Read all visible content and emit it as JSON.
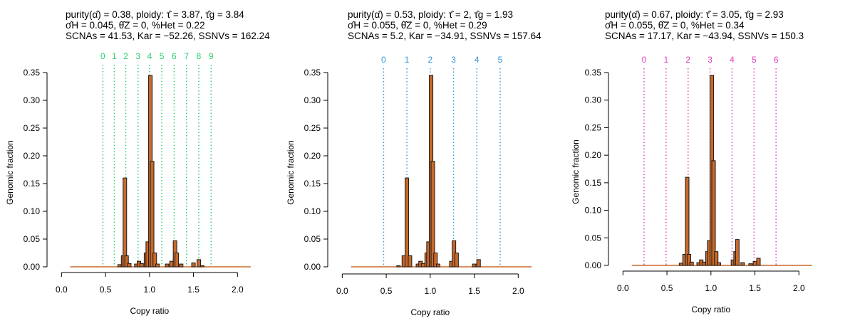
{
  "chart_data": [
    {
      "type": "bar",
      "header": {
        "line1": "purity(α̂) = 0.38, ploidy: τ̂ = 3.87, τ̂g = 3.84",
        "line2": "σ̂H = 0.045, θ̂Z = 0, %Het = 0.22",
        "line3": "SCNAs = 41.53, Kar = −52.26, SSNVs = 162.24"
      },
      "xlabel": "Copy ratio",
      "ylabel": "Genomic fraction",
      "xlim": [
        -0.1,
        2.2
      ],
      "ylim": [
        0,
        0.35
      ],
      "xticks": [
        "0.0",
        "0.5",
        "1.0",
        "1.5",
        "2.0"
      ],
      "yticks": [
        "0.00",
        "0.05",
        "0.10",
        "0.15",
        "0.20",
        "0.25",
        "0.30",
        "0.35"
      ],
      "copy_state_color": "#2ecc71",
      "copy_states": [
        {
          "label": "0",
          "x": 0.47
        },
        {
          "label": "1",
          "x": 0.6
        },
        {
          "label": "2",
          "x": 0.73
        },
        {
          "label": "3",
          "x": 0.87
        },
        {
          "label": "4",
          "x": 1.0
        },
        {
          "label": "5",
          "x": 1.14
        },
        {
          "label": "6",
          "x": 1.28
        },
        {
          "label": "7",
          "x": 1.42
        },
        {
          "label": "8",
          "x": 1.56
        },
        {
          "label": "9",
          "x": 1.7
        }
      ],
      "bars": [
        {
          "x": 0.66,
          "y": 0.004
        },
        {
          "x": 0.7,
          "y": 0.02
        },
        {
          "x": 0.72,
          "y": 0.16
        },
        {
          "x": 0.74,
          "y": 0.02
        },
        {
          "x": 0.77,
          "y": 0.006
        },
        {
          "x": 0.85,
          "y": 0.005
        },
        {
          "x": 0.88,
          "y": 0.01
        },
        {
          "x": 0.91,
          "y": 0.006
        },
        {
          "x": 0.96,
          "y": 0.025
        },
        {
          "x": 0.98,
          "y": 0.045
        },
        {
          "x": 1.01,
          "y": 0.345
        },
        {
          "x": 1.03,
          "y": 0.19
        },
        {
          "x": 1.06,
          "y": 0.025
        },
        {
          "x": 1.09,
          "y": 0.005
        },
        {
          "x": 1.2,
          "y": 0.005
        },
        {
          "x": 1.25,
          "y": 0.01
        },
        {
          "x": 1.29,
          "y": 0.047
        },
        {
          "x": 1.31,
          "y": 0.025
        },
        {
          "x": 1.36,
          "y": 0.005
        },
        {
          "x": 1.5,
          "y": 0.007
        },
        {
          "x": 1.56,
          "y": 0.013
        },
        {
          "x": 1.6,
          "y": 0.002
        }
      ]
    },
    {
      "type": "bar",
      "header": {
        "line1": "purity(α̂) = 0.53, ploidy: τ̂ = 2, τ̂g = 1.93",
        "line2": "σ̂H = 0.055, θ̂Z = 0, %Het = 0.29",
        "line3": "SCNAs = 5.2, Kar = −34.91, SSNVs = 157.64"
      },
      "xlabel": "Copy ratio",
      "ylabel": "Genomic fraction",
      "xlim": [
        -0.1,
        2.2
      ],
      "ylim": [
        0,
        0.35
      ],
      "xticks": [
        "0.0",
        "0.5",
        "1.0",
        "1.5",
        "2.0"
      ],
      "yticks": [
        "0.00",
        "0.05",
        "0.10",
        "0.15",
        "0.20",
        "0.25",
        "0.30",
        "0.35"
      ],
      "copy_state_color": "#3498db",
      "copy_states": [
        {
          "label": "0",
          "x": 0.47
        },
        {
          "label": "1",
          "x": 0.735
        },
        {
          "label": "2",
          "x": 1.0
        },
        {
          "label": "3",
          "x": 1.265
        },
        {
          "label": "4",
          "x": 1.53
        },
        {
          "label": "5",
          "x": 1.795
        }
      ],
      "bars": [
        {
          "x": 0.64,
          "y": 0.002
        },
        {
          "x": 0.7,
          "y": 0.02
        },
        {
          "x": 0.735,
          "y": 0.16
        },
        {
          "x": 0.77,
          "y": 0.02
        },
        {
          "x": 0.86,
          "y": 0.005
        },
        {
          "x": 0.89,
          "y": 0.01
        },
        {
          "x": 0.92,
          "y": 0.006
        },
        {
          "x": 0.96,
          "y": 0.025
        },
        {
          "x": 0.98,
          "y": 0.045
        },
        {
          "x": 1.01,
          "y": 0.345
        },
        {
          "x": 1.03,
          "y": 0.19
        },
        {
          "x": 1.06,
          "y": 0.025
        },
        {
          "x": 1.09,
          "y": 0.005
        },
        {
          "x": 1.24,
          "y": 0.01
        },
        {
          "x": 1.27,
          "y": 0.047
        },
        {
          "x": 1.3,
          "y": 0.025
        },
        {
          "x": 1.5,
          "y": 0.005
        },
        {
          "x": 1.55,
          "y": 0.013
        }
      ]
    },
    {
      "type": "bar",
      "header": {
        "line1": "purity(α̂) = 0.67, ploidy: τ̂ = 3.05, τ̂g = 2.93",
        "line2": "σ̂H = 0.055, θ̂Z = 0, %Het = 0.34",
        "line3": "SCNAs = 17.17, Kar = −43.94, SSNVs = 150.3"
      },
      "xlabel": "Copy ratio",
      "ylabel": "Genomic fraction",
      "xlim": [
        -0.1,
        2.2
      ],
      "ylim": [
        0,
        0.35
      ],
      "xticks": [
        "0.0",
        "0.5",
        "1.0",
        "1.5",
        "2.0"
      ],
      "yticks": [
        "0.00",
        "0.05",
        "0.10",
        "0.15",
        "0.20",
        "0.25",
        "0.30",
        "0.35"
      ],
      "copy_state_color": "#e040c0",
      "copy_states": [
        {
          "label": "0",
          "x": 0.24
        },
        {
          "label": "1",
          "x": 0.49
        },
        {
          "label": "2",
          "x": 0.74
        },
        {
          "label": "3",
          "x": 0.99
        },
        {
          "label": "4",
          "x": 1.24
        },
        {
          "label": "5",
          "x": 1.49
        },
        {
          "label": "6",
          "x": 1.74
        }
      ],
      "bars": [
        {
          "x": 0.66,
          "y": 0.004
        },
        {
          "x": 0.7,
          "y": 0.02
        },
        {
          "x": 0.73,
          "y": 0.16
        },
        {
          "x": 0.75,
          "y": 0.02
        },
        {
          "x": 0.78,
          "y": 0.006
        },
        {
          "x": 0.86,
          "y": 0.005
        },
        {
          "x": 0.89,
          "y": 0.01
        },
        {
          "x": 0.92,
          "y": 0.006
        },
        {
          "x": 0.96,
          "y": 0.025
        },
        {
          "x": 0.98,
          "y": 0.045
        },
        {
          "x": 1.01,
          "y": 0.345
        },
        {
          "x": 1.03,
          "y": 0.19
        },
        {
          "x": 1.06,
          "y": 0.025
        },
        {
          "x": 1.09,
          "y": 0.005
        },
        {
          "x": 1.25,
          "y": 0.01
        },
        {
          "x": 1.28,
          "y": 0.025
        },
        {
          "x": 1.3,
          "y": 0.047
        },
        {
          "x": 1.36,
          "y": 0.005
        },
        {
          "x": 1.45,
          "y": 0.003
        },
        {
          "x": 1.5,
          "y": 0.007
        },
        {
          "x": 1.54,
          "y": 0.013
        }
      ]
    }
  ],
  "colors": {
    "bar_fill": "#c8692a",
    "bar_stroke": "#1a1a1a",
    "axis": "#000000",
    "baseline": "#c8692a"
  }
}
